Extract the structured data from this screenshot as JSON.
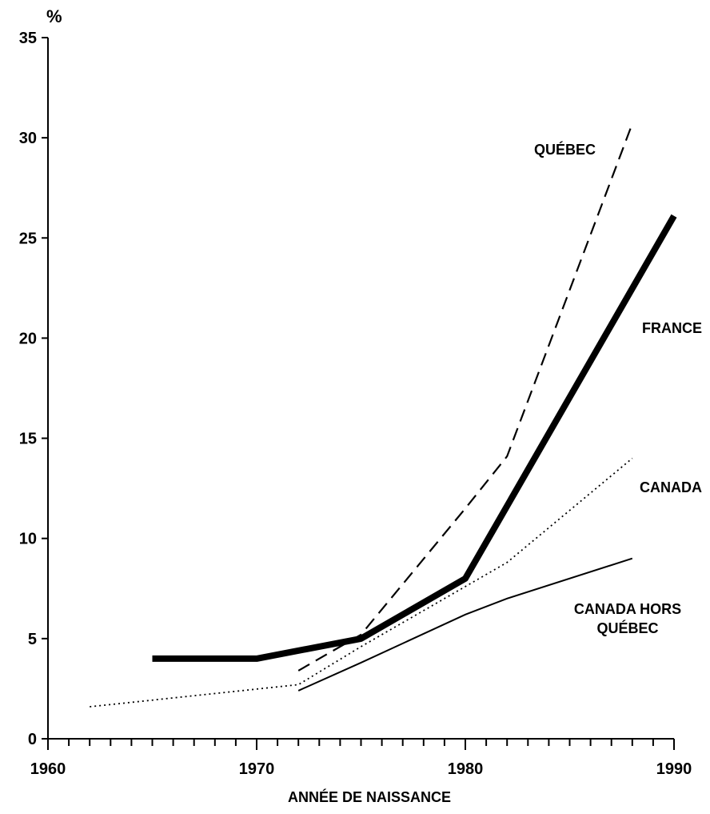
{
  "chart_data": {
    "type": "line",
    "title": "",
    "ylabel": "%",
    "xlabel": "ANNÉE DE NAISSANCE",
    "xlim": [
      1960,
      1990
    ],
    "ylim": [
      0,
      35
    ],
    "x_major_ticks": [
      1960,
      1970,
      1980,
      1990
    ],
    "x_minor_tick_step": 1,
    "y_ticks": [
      0,
      5,
      10,
      15,
      20,
      25,
      30,
      35
    ],
    "grid": false,
    "legend": "inline labels",
    "series": [
      {
        "name": "QUÉBEC",
        "style": "dashed",
        "x": [
          1972,
          1975,
          1980,
          1982,
          1988
        ],
        "y": [
          3.4,
          5.2,
          11.5,
          14.1,
          30.7
        ],
        "label_lines": [
          "QUÉBEC"
        ]
      },
      {
        "name": "FRANCE",
        "style": "thick",
        "x": [
          1965,
          1970,
          1975,
          1980,
          1990
        ],
        "y": [
          4.0,
          4.0,
          5.0,
          8.0,
          26.1
        ],
        "label_lines": [
          "FRANCE"
        ]
      },
      {
        "name": "CANADA",
        "style": "dotted",
        "x": [
          1962,
          1972,
          1975,
          1980,
          1982,
          1988
        ],
        "y": [
          1.6,
          2.7,
          4.6,
          7.6,
          8.8,
          14.0
        ],
        "label_lines": [
          "CANADA"
        ]
      },
      {
        "name": "CANADA HORS QUÉBEC",
        "style": "thin",
        "x": [
          1972,
          1975,
          1980,
          1982,
          1988
        ],
        "y": [
          2.4,
          3.8,
          6.2,
          7.0,
          9.0
        ],
        "label_lines": [
          "CANADA HORS",
          "QUÉBEC"
        ]
      }
    ]
  }
}
